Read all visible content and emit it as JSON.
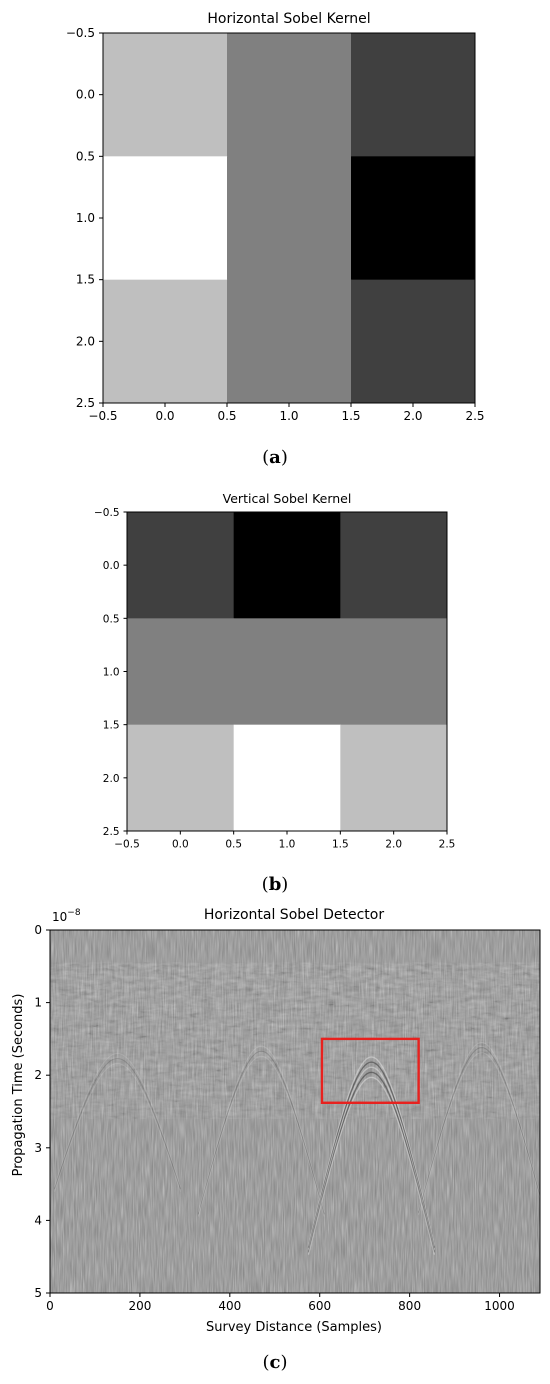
{
  "chart_data": [
    {
      "type": "heatmap",
      "title": "Horizontal Sobel Kernel",
      "caption": {
        "open": "(",
        "letter": "a",
        "close": ")"
      },
      "values": [
        [
          1,
          0,
          -1
        ],
        [
          2,
          0,
          -2
        ],
        [
          1,
          0,
          -1
        ]
      ],
      "vmin": -2,
      "vmax": 2,
      "colormap": "gray",
      "xlim": [
        -0.5,
        2.5
      ],
      "ylim": [
        2.5,
        -0.5
      ],
      "xticks": [
        "−0.5",
        "0.0",
        "0.5",
        "1.0",
        "1.5",
        "2.0",
        "2.5"
      ],
      "yticks": [
        "−0.5",
        "0.0",
        "0.5",
        "1.0",
        "1.5",
        "2.0",
        "2.5"
      ]
    },
    {
      "type": "heatmap",
      "title": "Vertical Sobel Kernel",
      "caption": {
        "open": "(",
        "letter": "b",
        "close": ")"
      },
      "values": [
        [
          -1,
          -2,
          -1
        ],
        [
          0,
          0,
          0
        ],
        [
          1,
          2,
          1
        ]
      ],
      "vmin": -2,
      "vmax": 2,
      "colormap": "gray",
      "xlim": [
        -0.5,
        2.5
      ],
      "ylim": [
        2.5,
        -0.5
      ],
      "xticks": [
        "−0.5",
        "0.0",
        "0.5",
        "1.0",
        "1.5",
        "2.0",
        "2.5"
      ],
      "yticks": [
        "−0.5",
        "0.0",
        "0.5",
        "1.0",
        "1.5",
        "2.0",
        "2.5"
      ]
    },
    {
      "type": "heatmap",
      "title": "Horizontal Sobel Detector",
      "caption": {
        "open": "(",
        "letter": "c",
        "close": ")"
      },
      "xlabel": "Survey Distance (Samples)",
      "ylabel": "Propagation Time (Seconds)",
      "y_scale_label": {
        "base": "10",
        "exponent": "−8"
      },
      "xlim": [
        0,
        1090
      ],
      "ylim": [
        5,
        0
      ],
      "xticks": [
        0,
        200,
        400,
        600,
        800,
        1000
      ],
      "yticks": [
        0,
        1,
        2,
        3,
        4,
        5
      ],
      "colormap": "gray",
      "annotation": {
        "shape": "rectangle",
        "color": "#e8211e",
        "x_range": [
          605,
          820
        ],
        "y_range": [
          1.5,
          2.38
        ]
      }
    }
  ]
}
